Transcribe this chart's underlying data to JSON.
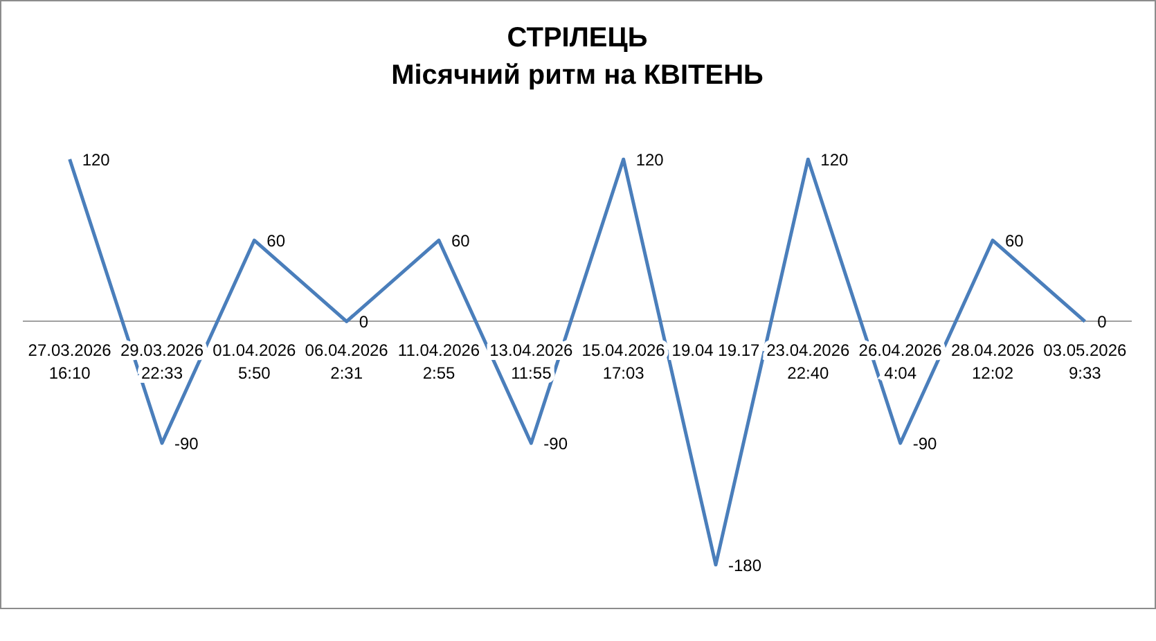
{
  "chart_data": {
    "type": "line",
    "title": "СТРІЛЕЦЬ",
    "subtitle": "Місячний ритм на КВІТЕНЬ",
    "categories": [
      "27.03.2026 16:10",
      "29.03.2026 22:33",
      "01.04.2026 5:50",
      "06.04.2026 2:31",
      "11.04.2026 2:55",
      "13.04.2026 11:55",
      "15.04.2026 17:03",
      "19.04 19.17",
      "23.04.2026 22:40",
      "26.04.2026 4:04",
      "28.04.2026 12:02",
      "03.05.2026 9:33"
    ],
    "values": [
      120,
      -90,
      60,
      0,
      60,
      -90,
      120,
      -180,
      120,
      -90,
      60,
      0
    ],
    "color": "#4a7ebb",
    "data_labels": true,
    "grid": false,
    "legend": false,
    "marker": "none",
    "line_style": "solid",
    "tick_labels": "x"
  }
}
